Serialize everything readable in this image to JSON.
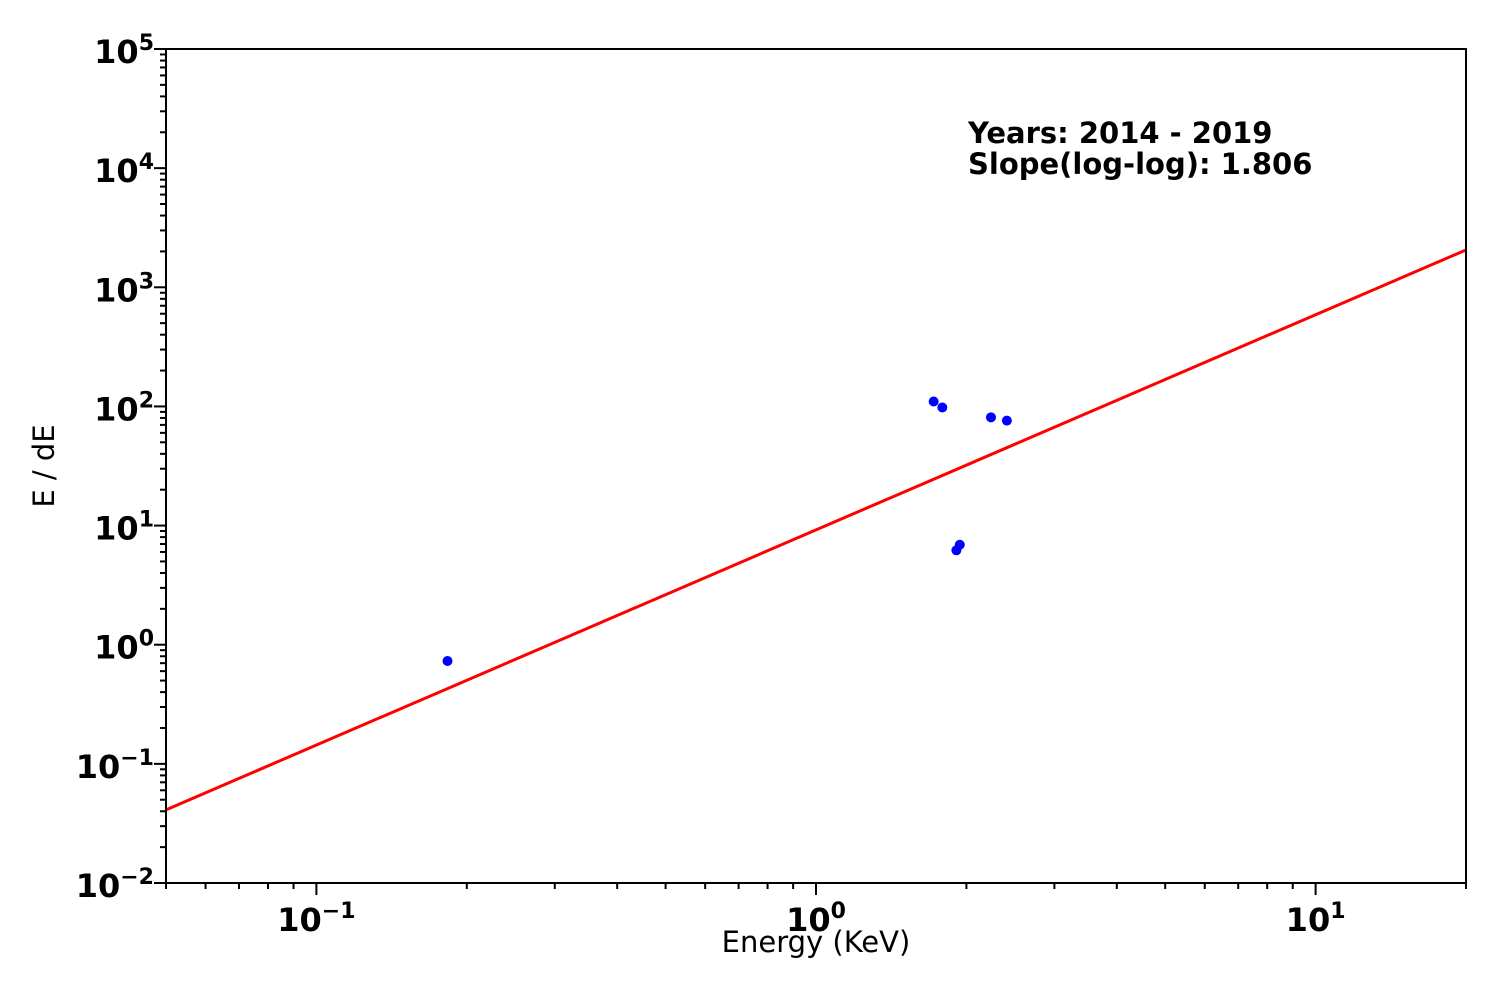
{
  "chart_data": {
    "type": "scatter",
    "title": "",
    "xlabel": "Energy (KeV)",
    "ylabel": "E / dE",
    "x_scale": "log",
    "y_scale": "log",
    "xlim": [
      0.05,
      20
    ],
    "ylim": [
      0.01,
      100000
    ],
    "x_major_tick_exponents": [
      -1,
      0,
      1
    ],
    "y_major_tick_exponents": [
      -2,
      -1,
      0,
      1,
      2,
      3,
      4,
      5
    ],
    "x_tick_labels": [
      "10⁻¹",
      "10⁰",
      "10¹"
    ],
    "y_tick_labels": [
      "10⁻²",
      "10⁻¹",
      "10⁰",
      "10¹",
      "10²",
      "10³",
      "10⁴",
      "10⁵"
    ],
    "grid": false,
    "legend": "none",
    "annotation": {
      "line1": "Years: 2014 - 2019",
      "line2": "Slope(log-log): 1.806"
    },
    "series": [
      {
        "name": "data points",
        "type": "scatter",
        "marker": "circle",
        "color": "#0000ff",
        "points": [
          {
            "x": 0.183,
            "y": 0.73
          },
          {
            "x": 1.72,
            "y": 110
          },
          {
            "x": 1.79,
            "y": 98
          },
          {
            "x": 2.24,
            "y": 81
          },
          {
            "x": 2.41,
            "y": 76
          },
          {
            "x": 1.91,
            "y": 6.2
          },
          {
            "x": 1.94,
            "y": 6.9
          }
        ]
      },
      {
        "name": "power-law fit line",
        "type": "line",
        "color": "#ff0000",
        "slope_loglog": 1.806,
        "value_at_x1": 9.2,
        "x_start": 0.05,
        "x_end": 20
      }
    ],
    "colors": {
      "scatter": "#0000ff",
      "fit_line": "#ff0000",
      "axis": "#000000",
      "text": "#000000",
      "background": "#ffffff"
    }
  }
}
